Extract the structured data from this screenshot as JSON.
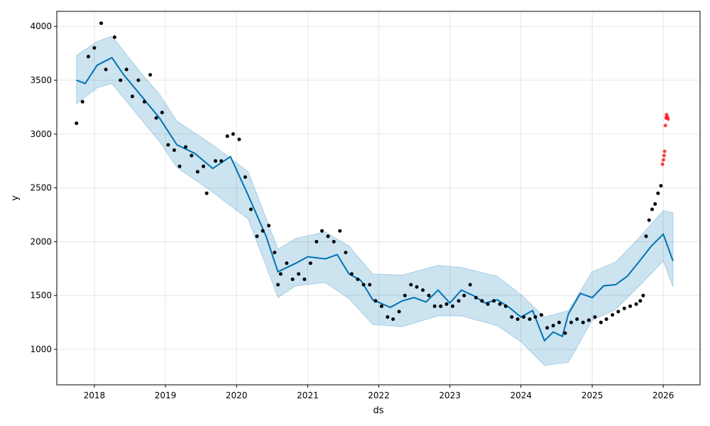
{
  "chart_data": {
    "type": "line",
    "title": "",
    "xlabel": "ds",
    "ylabel": "y",
    "x_ticks": [
      "2018",
      "2019",
      "2020",
      "2021",
      "2022",
      "2023",
      "2024",
      "2025",
      "2026"
    ],
    "y_ticks": [
      1000,
      1500,
      2000,
      2500,
      3000,
      3500,
      4000
    ],
    "xlim": [
      "2017-06-22",
      "2026-07-09"
    ],
    "ylim": [
      670,
      4140
    ],
    "grid": true,
    "legend": "none",
    "colors": {
      "observed": "#000000",
      "held_out": "#ff0000",
      "forecast": "#0072b2",
      "uncertainty": "#0072b2"
    },
    "series": [
      {
        "role": "forecast",
        "dates": [
          "2017-10-01",
          "2017-11-15",
          "2018-01-15",
          "2018-04-01",
          "2018-06-01",
          "2018-09-01",
          "2018-12-01",
          "2019-03-01",
          "2019-06-01",
          "2019-09-01",
          "2019-12-01",
          "2020-03-01",
          "2020-06-01",
          "2020-08-01",
          "2020-11-01",
          "2021-01-01",
          "2021-04-01",
          "2021-06-01",
          "2021-08-01",
          "2021-10-01",
          "2021-12-01",
          "2022-03-01",
          "2022-05-01",
          "2022-07-01",
          "2022-09-01",
          "2022-11-01",
          "2023-01-01",
          "2023-03-01",
          "2023-05-01",
          "2023-07-01",
          "2023-09-01",
          "2023-11-01",
          "2024-01-01",
          "2024-03-01",
          "2024-05-01",
          "2024-06-15",
          "2024-08-01",
          "2024-09-01",
          "2024-11-01",
          "2025-01-01",
          "2025-03-01",
          "2025-05-01",
          "2025-07-01",
          "2025-09-01",
          "2025-11-01",
          "2026-01-01",
          "2026-02-20"
        ],
        "y": [
          3500,
          3470,
          3640,
          3710,
          3550,
          3350,
          3150,
          2900,
          2820,
          2680,
          2790,
          2430,
          2050,
          1720,
          1800,
          1860,
          1840,
          1880,
          1700,
          1640,
          1460,
          1390,
          1450,
          1480,
          1440,
          1550,
          1430,
          1550,
          1500,
          1430,
          1460,
          1390,
          1300,
          1360,
          1080,
          1160,
          1120,
          1330,
          1520,
          1480,
          1590,
          1600,
          1680,
          1820,
          1960,
          2070,
          1820
        ]
      },
      {
        "role": "uncertainty_upper",
        "dates": [
          "2017-10-01",
          "2018-01-15",
          "2018-04-01",
          "2018-09-01",
          "2018-12-01",
          "2019-03-01",
          "2019-09-01",
          "2020-03-01",
          "2020-08-01",
          "2020-11-01",
          "2021-04-01",
          "2021-08-01",
          "2021-12-01",
          "2022-05-01",
          "2022-11-01",
          "2023-03-01",
          "2023-09-01",
          "2024-01-01",
          "2024-05-01",
          "2024-09-01",
          "2025-01-01",
          "2025-05-01",
          "2025-09-01",
          "2026-01-01",
          "2026-02-20"
        ],
        "y": [
          3730,
          3860,
          3910,
          3560,
          3370,
          3120,
          2900,
          2650,
          1930,
          2030,
          2090,
          1960,
          1700,
          1690,
          1780,
          1760,
          1680,
          1510,
          1300,
          1360,
          1720,
          1810,
          2040,
          2290,
          2270
        ]
      },
      {
        "role": "uncertainty_lower",
        "dates": [
          "2017-10-01",
          "2018-01-15",
          "2018-04-01",
          "2018-09-01",
          "2018-12-01",
          "2019-03-01",
          "2019-09-01",
          "2020-03-01",
          "2020-08-01",
          "2020-11-01",
          "2021-04-01",
          "2021-08-01",
          "2021-12-01",
          "2022-05-01",
          "2022-11-01",
          "2023-03-01",
          "2023-09-01",
          "2024-01-01",
          "2024-05-01",
          "2024-09-01",
          "2025-01-01",
          "2025-05-01",
          "2025-09-01",
          "2026-01-01",
          "2026-02-20"
        ],
        "y": [
          3280,
          3430,
          3470,
          3130,
          2930,
          2690,
          2460,
          2210,
          1480,
          1590,
          1620,
          1470,
          1230,
          1210,
          1310,
          1310,
          1220,
          1070,
          850,
          880,
          1270,
          1370,
          1590,
          1820,
          1580
        ]
      },
      {
        "role": "observed",
        "dates": [
          "2017-10-01",
          "2017-11-01",
          "2017-12-01",
          "2018-01-01",
          "2018-02-05",
          "2018-03-01",
          "2018-04-15",
          "2018-05-15",
          "2018-06-15",
          "2018-07-15",
          "2018-08-15",
          "2018-09-15",
          "2018-10-15",
          "2018-11-15",
          "2018-12-15",
          "2019-01-15",
          "2019-02-15",
          "2019-03-15",
          "2019-04-15",
          "2019-05-15",
          "2019-06-15",
          "2019-07-15",
          "2019-08-01",
          "2019-09-15",
          "2019-10-15",
          "2019-11-15",
          "2019-12-15",
          "2020-01-15",
          "2020-02-15",
          "2020-03-15",
          "2020-04-15",
          "2020-05-15",
          "2020-06-15",
          "2020-07-15",
          "2020-08-01",
          "2020-08-15",
          "2020-09-15",
          "2020-10-15",
          "2020-11-15",
          "2020-12-15",
          "2021-01-15",
          "2021-02-15",
          "2021-03-15",
          "2021-04-15",
          "2021-05-15",
          "2021-06-15",
          "2021-07-15",
          "2021-08-15",
          "2021-09-15",
          "2021-10-15",
          "2021-11-15",
          "2021-12-15",
          "2022-01-15",
          "2022-02-15",
          "2022-03-15",
          "2022-04-15",
          "2022-05-15",
          "2022-06-15",
          "2022-07-15",
          "2022-08-15",
          "2022-09-15",
          "2022-10-15",
          "2022-11-15",
          "2022-12-15",
          "2023-01-15",
          "2023-02-15",
          "2023-03-15",
          "2023-04-15",
          "2023-05-15",
          "2023-06-15",
          "2023-07-15",
          "2023-08-15",
          "2023-09-15",
          "2023-10-15",
          "2023-11-15",
          "2023-12-15",
          "2024-01-15",
          "2024-02-15",
          "2024-03-15",
          "2024-04-15",
          "2024-05-15",
          "2024-06-15",
          "2024-07-15",
          "2024-08-15",
          "2024-09-15",
          "2024-10-15",
          "2024-11-15",
          "2024-12-15",
          "2025-01-15",
          "2025-02-15",
          "2025-03-15",
          "2025-04-15",
          "2025-05-15",
          "2025-06-15",
          "2025-07-15",
          "2025-08-15",
          "2025-09-05",
          "2025-09-20",
          "2025-10-05",
          "2025-10-20",
          "2025-11-05",
          "2025-11-20",
          "2025-12-05",
          "2025-12-20"
        ],
        "y": [
          3100,
          3300,
          3720,
          3800,
          4030,
          3600,
          3900,
          3500,
          3600,
          3350,
          3500,
          3300,
          3550,
          3150,
          3200,
          2900,
          2850,
          2700,
          2880,
          2800,
          2650,
          2700,
          2450,
          2750,
          2750,
          2980,
          3000,
          2950,
          2600,
          2300,
          2050,
          2100,
          2150,
          1900,
          1600,
          1700,
          1800,
          1650,
          1700,
          1650,
          1800,
          2000,
          2100,
          2050,
          2000,
          2100,
          1900,
          1700,
          1650,
          1600,
          1600,
          1450,
          1400,
          1300,
          1280,
          1350,
          1500,
          1600,
          1580,
          1550,
          1500,
          1400,
          1400,
          1420,
          1400,
          1450,
          1500,
          1600,
          1480,
          1450,
          1420,
          1450,
          1420,
          1400,
          1300,
          1280,
          1300,
          1280,
          1300,
          1320,
          1200,
          1220,
          1250,
          1150,
          1250,
          1280,
          1250,
          1270,
          1300,
          1250,
          1280,
          1320,
          1350,
          1380,
          1400,
          1420,
          1450,
          1500,
          2050,
          2200,
          2300,
          2350,
          2450,
          2520
        ]
      },
      {
        "role": "held_out",
        "dates": [
          "2025-12-28",
          "2026-01-02",
          "2026-01-05",
          "2026-01-08",
          "2026-01-12",
          "2026-01-15",
          "2026-01-18",
          "2026-01-22",
          "2026-01-26"
        ],
        "y": [
          2720,
          2760,
          2800,
          2840,
          3080,
          3150,
          3180,
          3160,
          3140
        ]
      }
    ]
  }
}
